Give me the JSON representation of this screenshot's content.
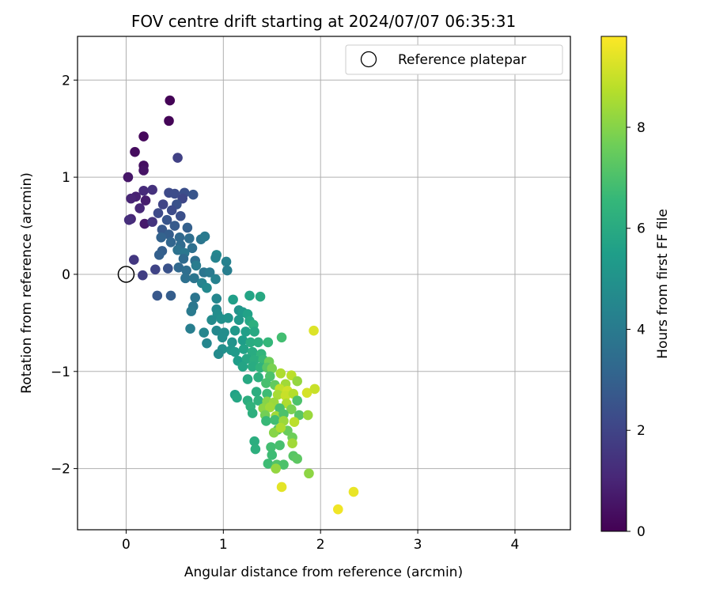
{
  "chart_data": {
    "type": "scatter",
    "title": "FOV centre drift starting at 2024/07/07 06:35:31",
    "xlabel": "Angular distance from reference (arcmin)",
    "ylabel": "Rotation from reference (arcmin)",
    "xlim": [
      -0.5,
      4.57
    ],
    "ylim": [
      -2.63,
      2.45
    ],
    "xticks": [
      0,
      1,
      2,
      3,
      4
    ],
    "xtick_labels": [
      "0",
      "1",
      "2",
      "3",
      "4"
    ],
    "yticks": [
      -2,
      -1,
      0,
      1,
      2
    ],
    "ytick_labels": [
      "−2",
      "−1",
      "0",
      "1",
      "2"
    ],
    "grid": true,
    "legend": {
      "position": "top-right",
      "entries": [
        "Reference platepar"
      ]
    },
    "reference_point": {
      "x": 0,
      "y": 0,
      "label": "Reference platepar"
    },
    "colorbar": {
      "label": "Hours from first FF file",
      "range": [
        0,
        9.8
      ],
      "ticks": [
        0,
        2,
        4,
        6,
        8
      ],
      "tick_labels": [
        "0",
        "2",
        "4",
        "6",
        "8"
      ],
      "colormap": "viridis"
    },
    "points": [
      {
        "x": 0.45,
        "y": 1.79,
        "c": 0.05
      },
      {
        "x": 0.44,
        "y": 1.58,
        "c": 0.1
      },
      {
        "x": 0.18,
        "y": 1.42,
        "c": 0.2
      },
      {
        "x": 0.09,
        "y": 1.26,
        "c": 0.3
      },
      {
        "x": 0.53,
        "y": 1.2,
        "c": 1.9
      },
      {
        "x": 0.18,
        "y": 1.12,
        "c": 0.4
      },
      {
        "x": 0.18,
        "y": 1.07,
        "c": 0.5
      },
      {
        "x": 0.02,
        "y": 1.0,
        "c": 0.6
      },
      {
        "x": 0.27,
        "y": 0.87,
        "c": 1.4
      },
      {
        "x": 0.18,
        "y": 0.86,
        "c": 1.2
      },
      {
        "x": 0.1,
        "y": 0.8,
        "c": 0.9
      },
      {
        "x": 0.05,
        "y": 0.78,
        "c": 1.0
      },
      {
        "x": 0.2,
        "y": 0.76,
        "c": 0.8
      },
      {
        "x": 0.14,
        "y": 0.68,
        "c": 1.1
      },
      {
        "x": 0.05,
        "y": 0.57,
        "c": 1.0
      },
      {
        "x": 0.03,
        "y": 0.56,
        "c": 1.3
      },
      {
        "x": 0.19,
        "y": 0.52,
        "c": 0.7
      },
      {
        "x": 0.27,
        "y": 0.54,
        "c": 1.5
      },
      {
        "x": 0.44,
        "y": 0.84,
        "c": 2.2
      },
      {
        "x": 0.5,
        "y": 0.83,
        "c": 2.3
      },
      {
        "x": 0.6,
        "y": 0.84,
        "c": 2.4
      },
      {
        "x": 0.69,
        "y": 0.82,
        "c": 2.6
      },
      {
        "x": 0.58,
        "y": 0.78,
        "c": 2.1
      },
      {
        "x": 0.52,
        "y": 0.72,
        "c": 2.5
      },
      {
        "x": 0.38,
        "y": 0.72,
        "c": 2.0
      },
      {
        "x": 0.47,
        "y": 0.66,
        "c": 2.3
      },
      {
        "x": 0.33,
        "y": 0.63,
        "c": 2.2
      },
      {
        "x": 0.56,
        "y": 0.6,
        "c": 2.4
      },
      {
        "x": 0.42,
        "y": 0.56,
        "c": 2.6
      },
      {
        "x": 0.5,
        "y": 0.5,
        "c": 2.8
      },
      {
        "x": 0.63,
        "y": 0.48,
        "c": 3.0
      },
      {
        "x": 0.37,
        "y": 0.46,
        "c": 2.7
      },
      {
        "x": 0.44,
        "y": 0.41,
        "c": 2.9
      },
      {
        "x": 0.36,
        "y": 0.38,
        "c": 3.1
      },
      {
        "x": 0.55,
        "y": 0.38,
        "c": 3.3
      },
      {
        "x": 0.65,
        "y": 0.37,
        "c": 3.5
      },
      {
        "x": 0.77,
        "y": 0.36,
        "c": 3.8
      },
      {
        "x": 0.81,
        "y": 0.39,
        "c": 4.0
      },
      {
        "x": 0.46,
        "y": 0.33,
        "c": 3.2
      },
      {
        "x": 0.56,
        "y": 0.3,
        "c": 3.4
      },
      {
        "x": 0.68,
        "y": 0.27,
        "c": 3.6
      },
      {
        "x": 0.37,
        "y": 0.24,
        "c": 2.9
      },
      {
        "x": 0.34,
        "y": 0.2,
        "c": 3.0
      },
      {
        "x": 0.53,
        "y": 0.25,
        "c": 3.7
      },
      {
        "x": 0.6,
        "y": 0.22,
        "c": 3.9
      },
      {
        "x": 0.59,
        "y": 0.16,
        "c": 3.4
      },
      {
        "x": 0.71,
        "y": 0.14,
        "c": 3.6
      },
      {
        "x": 0.72,
        "y": 0.09,
        "c": 4.1
      },
      {
        "x": 0.93,
        "y": 0.2,
        "c": 4.6
      },
      {
        "x": 0.92,
        "y": 0.17,
        "c": 4.4
      },
      {
        "x": 1.03,
        "y": 0.13,
        "c": 4.3
      },
      {
        "x": 1.04,
        "y": 0.04,
        "c": 4.2
      },
      {
        "x": 0.08,
        "y": 0.15,
        "c": 1.6
      },
      {
        "x": 0.17,
        "y": -0.01,
        "c": 1.8
      },
      {
        "x": 0.3,
        "y": 0.05,
        "c": 2.0
      },
      {
        "x": 0.43,
        "y": 0.06,
        "c": 2.5
      },
      {
        "x": 0.54,
        "y": 0.07,
        "c": 3.3
      },
      {
        "x": 0.62,
        "y": 0.04,
        "c": 3.5
      },
      {
        "x": 0.8,
        "y": 0.02,
        "c": 3.8
      },
      {
        "x": 0.86,
        "y": 0.02,
        "c": 4.0
      },
      {
        "x": 0.61,
        "y": -0.04,
        "c": 3.6
      },
      {
        "x": 0.7,
        "y": -0.04,
        "c": 3.8
      },
      {
        "x": 0.78,
        "y": -0.09,
        "c": 4.4
      },
      {
        "x": 0.83,
        "y": -0.14,
        "c": 4.6
      },
      {
        "x": 0.92,
        "y": -0.05,
        "c": 4.3
      },
      {
        "x": 0.32,
        "y": -0.22,
        "c": 2.7
      },
      {
        "x": 0.46,
        "y": -0.22,
        "c": 2.9
      },
      {
        "x": 0.71,
        "y": -0.24,
        "c": 3.8
      },
      {
        "x": 0.93,
        "y": -0.25,
        "c": 4.5
      },
      {
        "x": 1.1,
        "y": -0.26,
        "c": 5.5
      },
      {
        "x": 1.27,
        "y": -0.22,
        "c": 5.7
      },
      {
        "x": 1.38,
        "y": -0.23,
        "c": 5.9
      },
      {
        "x": 0.69,
        "y": -0.33,
        "c": 3.9
      },
      {
        "x": 0.67,
        "y": -0.38,
        "c": 4.0
      },
      {
        "x": 0.93,
        "y": -0.36,
        "c": 4.6
      },
      {
        "x": 0.94,
        "y": -0.41,
        "c": 4.8
      },
      {
        "x": 1.16,
        "y": -0.37,
        "c": 5.0
      },
      {
        "x": 1.2,
        "y": -0.39,
        "c": 5.3
      },
      {
        "x": 1.25,
        "y": -0.41,
        "c": 5.6
      },
      {
        "x": 0.88,
        "y": -0.47,
        "c": 4.7
      },
      {
        "x": 0.98,
        "y": -0.46,
        "c": 4.9
      },
      {
        "x": 1.05,
        "y": -0.45,
        "c": 5.0
      },
      {
        "x": 1.16,
        "y": -0.47,
        "c": 5.2
      },
      {
        "x": 1.27,
        "y": -0.48,
        "c": 5.8
      },
      {
        "x": 1.31,
        "y": -0.52,
        "c": 6.2
      },
      {
        "x": 0.66,
        "y": -0.56,
        "c": 4.2
      },
      {
        "x": 0.8,
        "y": -0.6,
        "c": 4.5
      },
      {
        "x": 0.93,
        "y": -0.58,
        "c": 4.6
      },
      {
        "x": 1.01,
        "y": -0.6,
        "c": 4.8
      },
      {
        "x": 1.12,
        "y": -0.58,
        "c": 5.2
      },
      {
        "x": 1.23,
        "y": -0.59,
        "c": 5.5
      },
      {
        "x": 1.32,
        "y": -0.59,
        "c": 5.9
      },
      {
        "x": 0.83,
        "y": -0.71,
        "c": 4.5
      },
      {
        "x": 0.99,
        "y": -0.65,
        "c": 4.8
      },
      {
        "x": 1.09,
        "y": -0.7,
        "c": 5.0
      },
      {
        "x": 1.2,
        "y": -0.68,
        "c": 5.4
      },
      {
        "x": 1.28,
        "y": -0.7,
        "c": 6.0
      },
      {
        "x": 1.36,
        "y": -0.7,
        "c": 6.1
      },
      {
        "x": 1.46,
        "y": -0.7,
        "c": 6.5
      },
      {
        "x": 1.6,
        "y": -0.65,
        "c": 6.8
      },
      {
        "x": 0.99,
        "y": -0.77,
        "c": 4.9
      },
      {
        "x": 1.08,
        "y": -0.78,
        "c": 5.1
      },
      {
        "x": 0.95,
        "y": -0.82,
        "c": 4.7
      },
      {
        "x": 1.12,
        "y": -0.8,
        "c": 5.3
      },
      {
        "x": 1.21,
        "y": -0.77,
        "c": 5.6
      },
      {
        "x": 1.3,
        "y": -0.8,
        "c": 6.0
      },
      {
        "x": 1.39,
        "y": -0.82,
        "c": 6.4
      },
      {
        "x": 1.15,
        "y": -0.89,
        "c": 5.4
      },
      {
        "x": 1.24,
        "y": -0.87,
        "c": 5.8
      },
      {
        "x": 1.32,
        "y": -0.88,
        "c": 6.1
      },
      {
        "x": 1.41,
        "y": -0.88,
        "c": 6.6
      },
      {
        "x": 1.47,
        "y": -0.9,
        "c": 7.6
      },
      {
        "x": 1.2,
        "y": -0.95,
        "c": 5.7
      },
      {
        "x": 1.3,
        "y": -0.95,
        "c": 6.0
      },
      {
        "x": 1.38,
        "y": -0.96,
        "c": 6.3
      },
      {
        "x": 1.45,
        "y": -0.96,
        "c": 7.2
      },
      {
        "x": 1.5,
        "y": -0.97,
        "c": 7.8
      },
      {
        "x": 1.25,
        "y": -1.08,
        "c": 5.9
      },
      {
        "x": 1.36,
        "y": -1.06,
        "c": 6.2
      },
      {
        "x": 1.48,
        "y": -1.05,
        "c": 7.0
      },
      {
        "x": 1.59,
        "y": -1.02,
        "c": 8.6
      },
      {
        "x": 1.7,
        "y": -1.04,
        "c": 8.8
      },
      {
        "x": 1.44,
        "y": -1.12,
        "c": 6.9
      },
      {
        "x": 1.53,
        "y": -1.14,
        "c": 7.4
      },
      {
        "x": 1.64,
        "y": -1.13,
        "c": 8.4
      },
      {
        "x": 1.76,
        "y": -1.1,
        "c": 8.2
      },
      {
        "x": 1.58,
        "y": -1.18,
        "c": 8.9
      },
      {
        "x": 1.66,
        "y": -1.2,
        "c": 9.1
      },
      {
        "x": 1.34,
        "y": -1.21,
        "c": 6.1
      },
      {
        "x": 1.45,
        "y": -1.23,
        "c": 6.7
      },
      {
        "x": 1.56,
        "y": -1.24,
        "c": 8.5
      },
      {
        "x": 1.64,
        "y": -1.25,
        "c": 9.0
      },
      {
        "x": 1.72,
        "y": -1.23,
        "c": 8.7
      },
      {
        "x": 1.86,
        "y": -1.22,
        "c": 9.2
      },
      {
        "x": 1.94,
        "y": -1.18,
        "c": 9.0
      },
      {
        "x": 1.12,
        "y": -1.24,
        "c": 5.6
      },
      {
        "x": 1.14,
        "y": -1.27,
        "c": 5.8
      },
      {
        "x": 1.25,
        "y": -1.3,
        "c": 6.1
      },
      {
        "x": 1.36,
        "y": -1.3,
        "c": 6.3
      },
      {
        "x": 1.45,
        "y": -1.31,
        "c": 8.0
      },
      {
        "x": 1.52,
        "y": -1.32,
        "c": 8.3
      },
      {
        "x": 1.65,
        "y": -1.33,
        "c": 8.6
      },
      {
        "x": 1.76,
        "y": -1.3,
        "c": 7.0
      },
      {
        "x": 1.28,
        "y": -1.36,
        "c": 6.3
      },
      {
        "x": 1.41,
        "y": -1.38,
        "c": 8.1
      },
      {
        "x": 1.48,
        "y": -1.37,
        "c": 8.4
      },
      {
        "x": 1.58,
        "y": -1.38,
        "c": 6.9
      },
      {
        "x": 1.7,
        "y": -1.39,
        "c": 7.8
      },
      {
        "x": 1.3,
        "y": -1.43,
        "c": 6.2
      },
      {
        "x": 1.43,
        "y": -1.45,
        "c": 7.7
      },
      {
        "x": 1.54,
        "y": -1.46,
        "c": 8.4
      },
      {
        "x": 1.62,
        "y": -1.44,
        "c": 7.0
      },
      {
        "x": 1.78,
        "y": -1.45,
        "c": 7.2
      },
      {
        "x": 1.87,
        "y": -1.45,
        "c": 8.3
      },
      {
        "x": 1.44,
        "y": -1.51,
        "c": 6.6
      },
      {
        "x": 1.53,
        "y": -1.5,
        "c": 6.8
      },
      {
        "x": 1.62,
        "y": -1.51,
        "c": 8.3
      },
      {
        "x": 1.73,
        "y": -1.52,
        "c": 8.8
      },
      {
        "x": 1.56,
        "y": -1.6,
        "c": 7.1
      },
      {
        "x": 1.66,
        "y": -1.61,
        "c": 7.5
      },
      {
        "x": 1.52,
        "y": -1.63,
        "c": 8.0
      },
      {
        "x": 1.59,
        "y": -1.58,
        "c": 8.6
      },
      {
        "x": 1.71,
        "y": -1.68,
        "c": 7.6
      },
      {
        "x": 1.32,
        "y": -1.72,
        "c": 6.1
      },
      {
        "x": 1.33,
        "y": -1.8,
        "c": 6.2
      },
      {
        "x": 1.49,
        "y": -1.78,
        "c": 6.8
      },
      {
        "x": 1.58,
        "y": -1.76,
        "c": 6.9
      },
      {
        "x": 1.71,
        "y": -1.74,
        "c": 8.4
      },
      {
        "x": 1.5,
        "y": -1.86,
        "c": 6.7
      },
      {
        "x": 1.72,
        "y": -1.87,
        "c": 7.2
      },
      {
        "x": 1.76,
        "y": -1.9,
        "c": 7.3
      },
      {
        "x": 1.46,
        "y": -1.95,
        "c": 6.7
      },
      {
        "x": 1.55,
        "y": -1.96,
        "c": 7.1
      },
      {
        "x": 1.62,
        "y": -1.96,
        "c": 7.0
      },
      {
        "x": 1.54,
        "y": -2.0,
        "c": 8.2
      },
      {
        "x": 1.88,
        "y": -2.05,
        "c": 8.1
      },
      {
        "x": 1.6,
        "y": -2.19,
        "c": 9.4
      },
      {
        "x": 2.18,
        "y": -2.42,
        "c": 9.6
      },
      {
        "x": 2.34,
        "y": -2.24,
        "c": 9.5
      },
      {
        "x": 1.93,
        "y": -0.58,
        "c": 9.3
      }
    ]
  }
}
